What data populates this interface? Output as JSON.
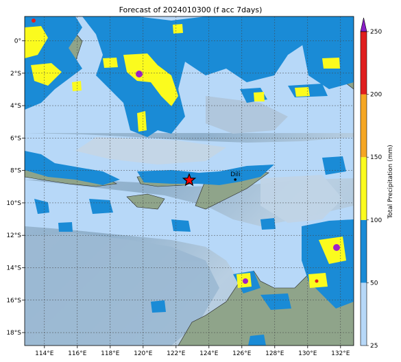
{
  "title": "Forecast of 2024010300 (f acc 7days)",
  "map": {
    "lon_range": [
      112.8,
      132.8
    ],
    "lat_range": [
      -18.8,
      1.5
    ],
    "xticks": [
      {
        "value": 114,
        "label": "114°E"
      },
      {
        "value": 116,
        "label": "116°E"
      },
      {
        "value": 118,
        "label": "118°E"
      },
      {
        "value": 120,
        "label": "120°E"
      },
      {
        "value": 122,
        "label": "122°E"
      },
      {
        "value": 124,
        "label": "124°E"
      },
      {
        "value": 126,
        "label": "126°E"
      },
      {
        "value": 128,
        "label": "128°E"
      },
      {
        "value": 130,
        "label": "130°E"
      },
      {
        "value": 132,
        "label": "132°E"
      }
    ],
    "yticks": [
      {
        "value": 0,
        "label": "0°"
      },
      {
        "value": -2,
        "label": "2°S"
      },
      {
        "value": -4,
        "label": "4°S"
      },
      {
        "value": -6,
        "label": "6°S"
      },
      {
        "value": -8,
        "label": "8°S"
      },
      {
        "value": -10,
        "label": "10°S"
      },
      {
        "value": -12,
        "label": "12°S"
      },
      {
        "value": -14,
        "label": "14°S"
      },
      {
        "value": -16,
        "label": "16°S"
      },
      {
        "value": -18,
        "label": "18°S"
      }
    ],
    "marker": {
      "lon": 122.8,
      "lat": -8.6
    },
    "city": {
      "name": "Dili",
      "lon": 125.6,
      "lat": -8.56
    }
  },
  "colorbar": {
    "label": "Total Precipitation (mm)",
    "levels": [
      25,
      50,
      100,
      150,
      200,
      250
    ],
    "colors": [
      "#b7d8f8",
      "#1a8bd6",
      "#fbfb1e",
      "#f5a623",
      "#e01e1e",
      "#8a1ec8"
    ],
    "extend": "max"
  },
  "colors": {
    "ocean": "#9ab8d2",
    "land": "#8fa48a",
    "light_rain": "#b7d8f8",
    "moderate_rain": "#1a8bd6",
    "heavy_rain": "#fbfb1e",
    "very_heavy": "#e01e1e",
    "extreme": "#a020c8"
  }
}
